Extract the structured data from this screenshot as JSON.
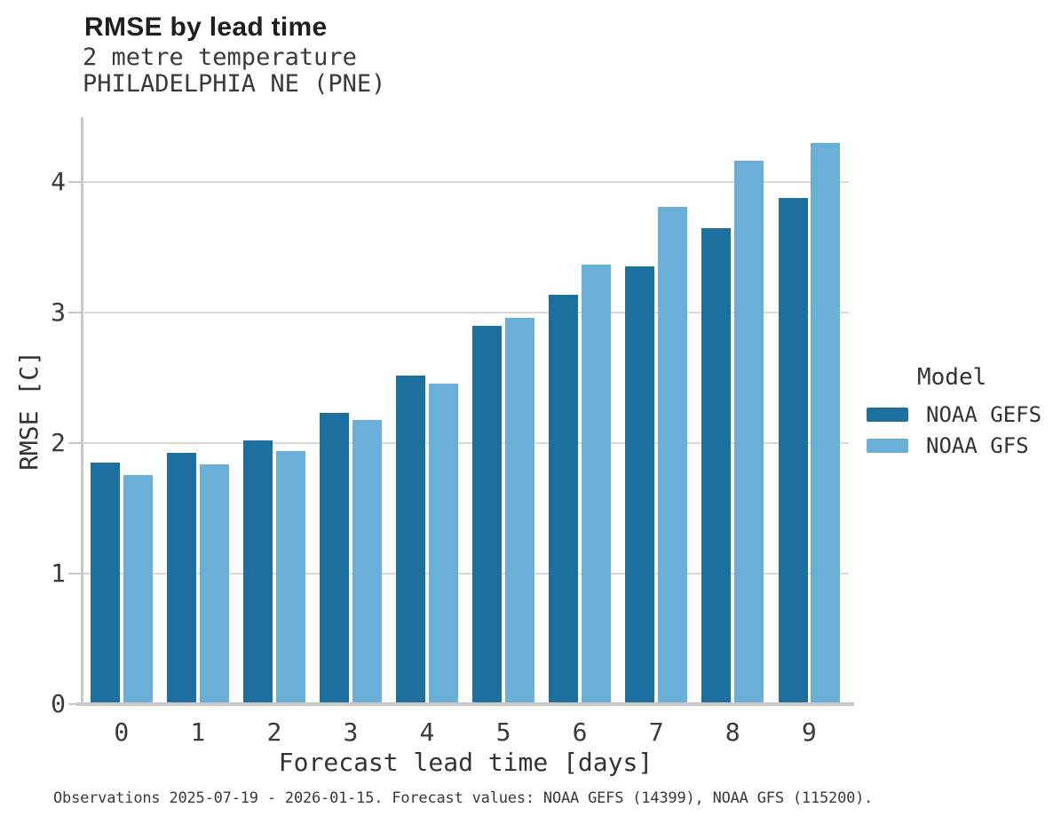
{
  "chart_data": {
    "type": "bar",
    "title": "RMSE by lead time",
    "subtitle": [
      "2 metre temperature",
      "PHILADELPHIA NE (PNE)"
    ],
    "categories": [
      "0",
      "1",
      "2",
      "3",
      "4",
      "5",
      "6",
      "7",
      "8",
      "9"
    ],
    "series": [
      {
        "name": "NOAA GEFS",
        "color": "#1d6f9e",
        "values": [
          1.85,
          1.93,
          2.02,
          2.23,
          2.52,
          2.9,
          3.14,
          3.36,
          3.65,
          3.88
        ]
      },
      {
        "name": "NOAA GFS",
        "color": "#69afd8",
        "values": [
          1.76,
          1.84,
          1.94,
          2.18,
          2.46,
          2.96,
          3.37,
          3.81,
          4.17,
          4.3
        ]
      }
    ],
    "xlabel": "Forecast lead time [days]",
    "ylabel": "RMSE [C]",
    "ylim": [
      0,
      4.5
    ],
    "yticks": [
      0,
      1,
      2,
      3,
      4
    ],
    "grid": "horizontal-only",
    "legend_title": "Model",
    "legend_position": "right"
  },
  "caption": "Observations 2025-07-19 - 2026-01-15. Forecast values: NOAA GEFS (14399), NOAA GFS (115200)."
}
